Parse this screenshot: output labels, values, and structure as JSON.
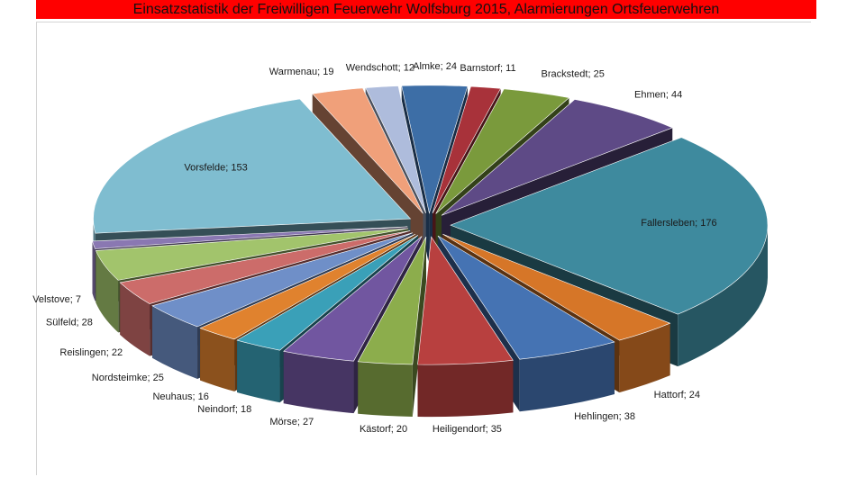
{
  "chart_data": {
    "type": "pie",
    "title": "Einsatzstatistik der Freiwilligen Feuerwehr Wolfsburg 2015, Alarmierungen Ortsfeuerwehren",
    "slices": [
      {
        "label": "Almke",
        "value": 24,
        "color": "#3d6ea6"
      },
      {
        "label": "Barnstorf",
        "value": 11,
        "color": "#a8323a"
      },
      {
        "label": "Brackstedt",
        "value": 25,
        "color": "#7a9a3c"
      },
      {
        "label": "Ehmen",
        "value": 44,
        "color": "#5e4a86"
      },
      {
        "label": "Fallersleben",
        "value": 176,
        "color": "#3e8a9e"
      },
      {
        "label": "Hattorf",
        "value": 24,
        "color": "#d67628"
      },
      {
        "label": "Hehlingen",
        "value": 38,
        "color": "#4573b3"
      },
      {
        "label": "Heiligendorf",
        "value": 35,
        "color": "#b8403f"
      },
      {
        "label": "Kästorf",
        "value": 20,
        "color": "#8cad4c"
      },
      {
        "label": "Mörse",
        "value": 27,
        "color": "#7156a0"
      },
      {
        "label": "Neindorf",
        "value": 18,
        "color": "#3aa0b8"
      },
      {
        "label": "Neuhaus",
        "value": 16,
        "color": "#e0822e"
      },
      {
        "label": "Nordsteimke",
        "value": 25,
        "color": "#6f8fc8"
      },
      {
        "label": "Reislingen",
        "value": 22,
        "color": "#cc6c6a"
      },
      {
        "label": "Sülfeld",
        "value": 28,
        "color": "#a2c46c"
      },
      {
        "label": "Velstove",
        "value": 7,
        "color": "#8a78b2"
      },
      {
        "label": "Vorsfelde",
        "value": 153,
        "color": "#7fbdd0"
      },
      {
        "label": "Warmenau",
        "value": 19,
        "color": "#f0a07a"
      },
      {
        "label": "Wendschott",
        "value": 12,
        "color": "#aebcdc"
      }
    ],
    "separator": "; ",
    "legend": "none",
    "style": "exploded 3d pie"
  }
}
